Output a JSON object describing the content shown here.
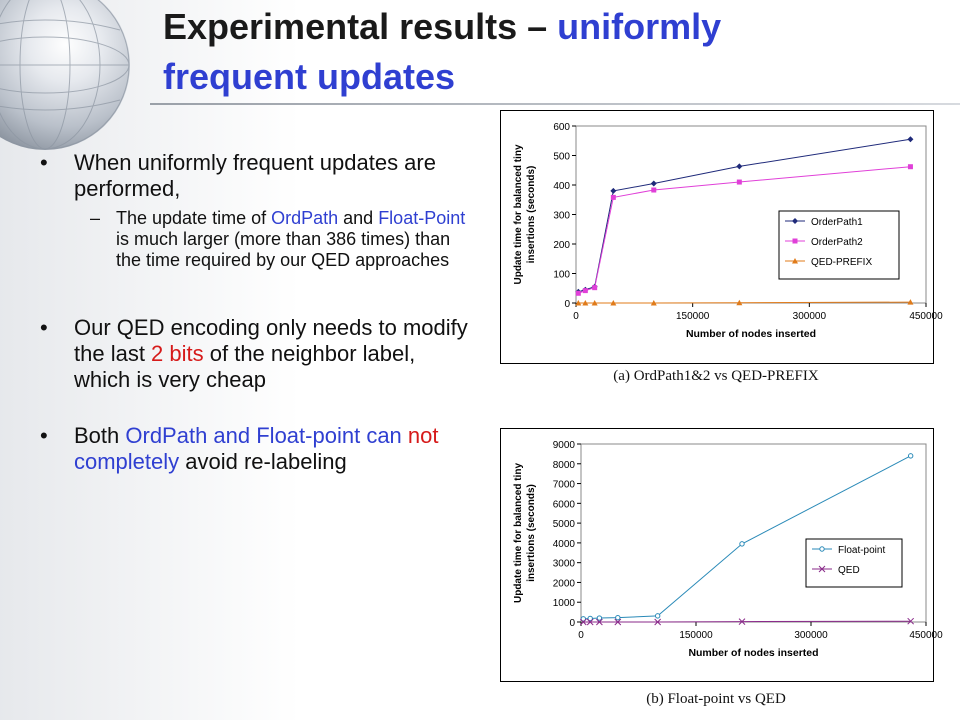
{
  "slide": {
    "title_part1": "Experimental results – ",
    "title_part2": "uniformly",
    "title_part3": "frequent updates",
    "bullets": {
      "b1_a": "When uniformly frequent updates are performed,",
      "sub_a": "The update time of ",
      "sub_ordpath": "OrdPath",
      "sub_b": " and ",
      "sub_float": "Float-Point",
      "sub_c": " is much larger (more than 386 times) than the time required by our QED approaches",
      "b2_a": "Our QED encoding only needs to modify the last ",
      "b2_red": "2 bits",
      "b2_b": " of the neighbor label, which is very cheap",
      "b3_a": "Both ",
      "b3_blue1": "OrdPath and Float-point",
      "b3_b": " ",
      "b3_blue2": "can ",
      "b3_red": "not",
      "b3_blue3": " completely",
      "b3_c": " avoid re-labeling"
    },
    "captions": {
      "a": "(a) OrdPath1&2 vs QED-PREFIX",
      "b": "(b) Float-point vs QED"
    }
  },
  "colors": {
    "accent_blue": "#2f3fd1",
    "red": "#d61a1a",
    "orderpath1": "#1f2a7a",
    "orderpath2": "#e040d8",
    "qed_prefix": "#e07b1a",
    "float_point": "#2a8ab8",
    "qed": "#8a2a8a"
  },
  "chart_data": [
    {
      "type": "line",
      "xlabel": "Number of nodes inserted",
      "ylabel": "Update time for balanced tiny insertions (seconds)",
      "xlim": [
        0,
        450000
      ],
      "ylim": [
        0,
        600
      ],
      "xticks": [
        0,
        150000,
        300000,
        450000
      ],
      "yticks": [
        0,
        100,
        200,
        300,
        400,
        500,
        600
      ],
      "grid": false,
      "legend_position": "right",
      "series": [
        {
          "name": "OrderPath1",
          "marker": "diamond",
          "x": [
            3000,
            12000,
            24000,
            48000,
            100000,
            210000,
            430000
          ],
          "y": [
            38,
            45,
            55,
            380,
            405,
            463,
            555
          ]
        },
        {
          "name": "OrderPath2",
          "marker": "square",
          "x": [
            3000,
            12000,
            24000,
            48000,
            100000,
            210000,
            430000
          ],
          "y": [
            33,
            42,
            52,
            358,
            383,
            410,
            462
          ]
        },
        {
          "name": "QED-PREFIX",
          "marker": "triangle",
          "x": [
            3000,
            12000,
            24000,
            48000,
            100000,
            210000,
            430000
          ],
          "y": [
            0,
            0,
            0,
            0,
            0,
            1,
            3
          ]
        }
      ]
    },
    {
      "type": "line",
      "xlabel": "Number of nodes inserted",
      "ylabel": "Update time for balanced tiny insertions (seconds)",
      "xlim": [
        0,
        450000
      ],
      "ylim": [
        0,
        9000
      ],
      "xticks": [
        0,
        150000,
        300000,
        450000
      ],
      "yticks": [
        0,
        1000,
        2000,
        3000,
        4000,
        5000,
        6000,
        7000,
        8000,
        9000
      ],
      "grid": false,
      "legend_position": "right",
      "series": [
        {
          "name": "Float-point",
          "marker": "circle",
          "x": [
            3000,
            12000,
            24000,
            48000,
            100000,
            210000,
            430000
          ],
          "y": [
            160,
            180,
            200,
            220,
            310,
            3950,
            8400
          ]
        },
        {
          "name": "QED",
          "marker": "x",
          "x": [
            3000,
            12000,
            24000,
            48000,
            100000,
            210000,
            430000
          ],
          "y": [
            0,
            0,
            0,
            0,
            0,
            20,
            40
          ]
        }
      ]
    }
  ]
}
